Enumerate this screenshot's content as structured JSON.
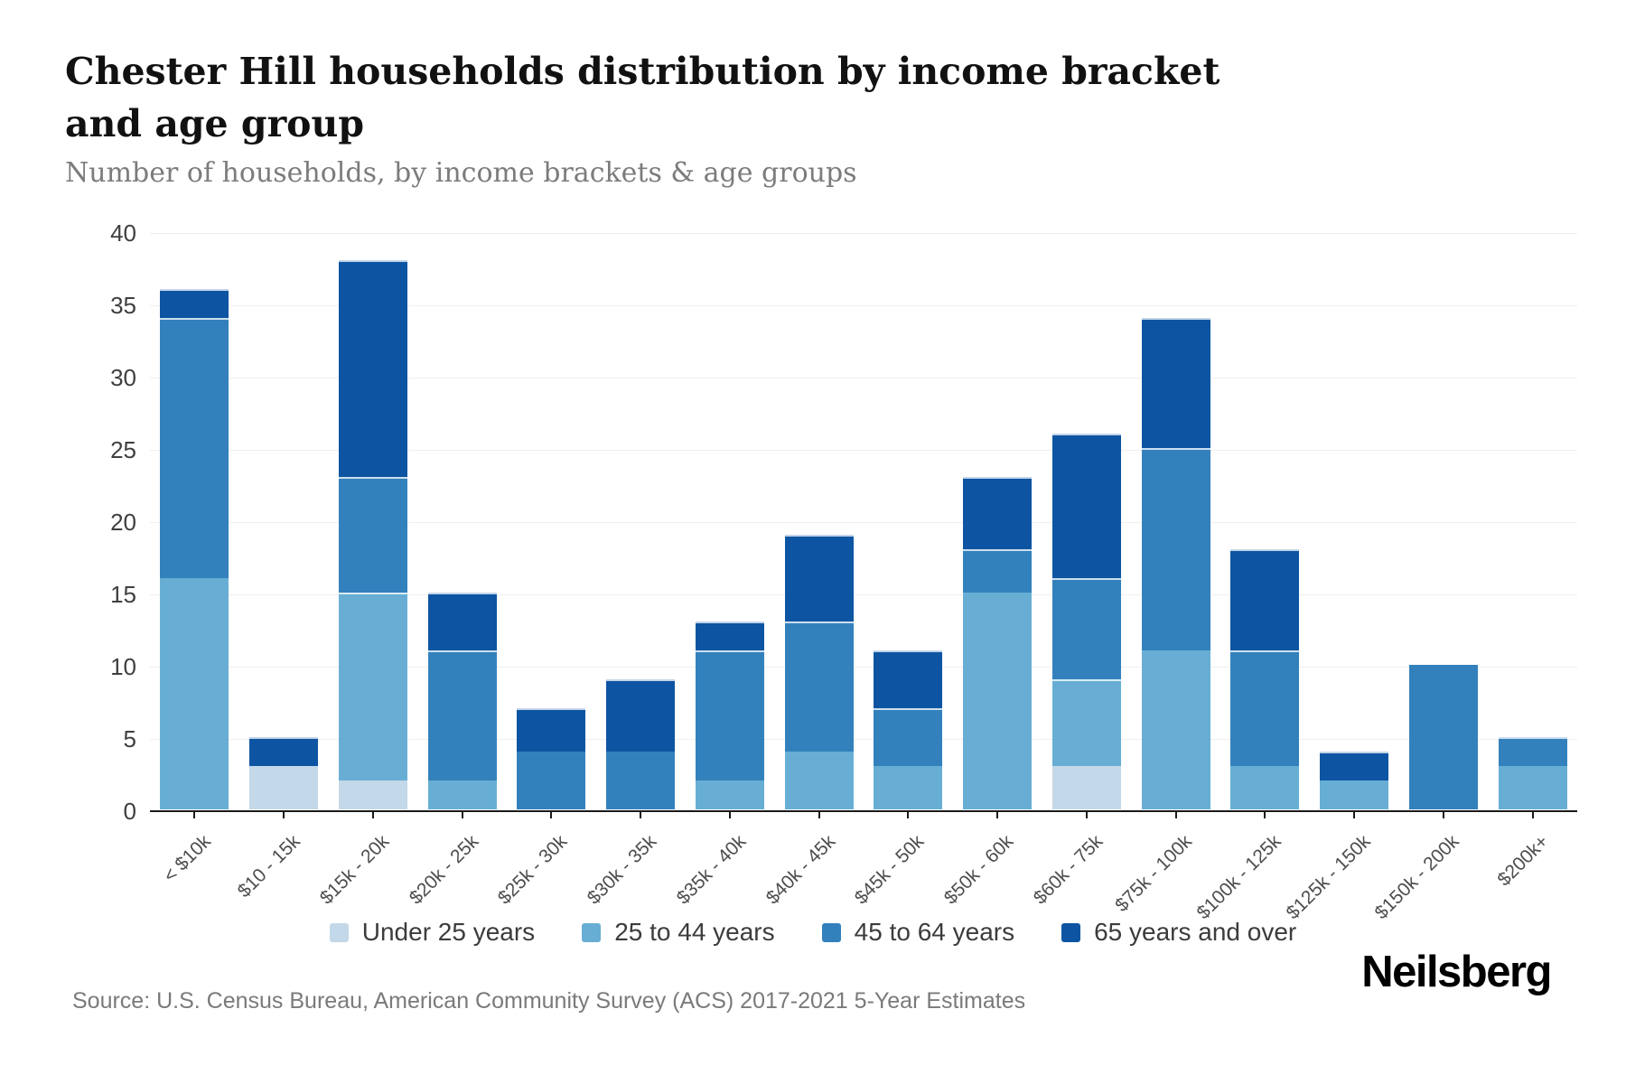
{
  "title": "Chester Hill households distribution by income bracket and age group",
  "subtitle": "Number of households, by income brackets & age groups",
  "source": "Source: U.S. Census Bureau, American Community Survey (ACS) 2017-2021 5-Year Estimates",
  "brand": "Neilsberg",
  "colors": {
    "under_25": "#c3d8e8",
    "age_25_44": "#68aed4",
    "age_45_64": "#3381bc",
    "age_65_over": "#0d55a2",
    "axis": "#1a1a1a",
    "grid": "#efefef",
    "title_text": "#111111",
    "subtitle_text": "#7c7c7c",
    "tick_text": "#3f3f3f",
    "xlabel_text": "#4d4d4d",
    "legend_text": "#3c3c3c",
    "source_text": "#7a7a7a"
  },
  "chart_data": {
    "type": "bar",
    "stacked": true,
    "title": "Chester Hill households distribution by income bracket and age group",
    "subtitle": "Number of households, by income brackets & age groups",
    "xlabel": "",
    "ylabel": "Number of households",
    "ylim": [
      0,
      40
    ],
    "yticks": [
      0,
      5,
      10,
      15,
      20,
      25,
      30,
      35,
      40
    ],
    "grid": true,
    "legend_position": "bottom",
    "categories": [
      "< $10k",
      "$10 - 15k",
      "$15k - 20k",
      "$20k - 25k",
      "$25k - 30k",
      "$30k - 35k",
      "$35k - 40k",
      "$40k - 45k",
      "$45k - 50k",
      "$50k - 60k",
      "$60k - 75k",
      "$75k - 100k",
      "$100k - 125k",
      "$125k - 150k",
      "$150k - 200k",
      "$200k+"
    ],
    "series": [
      {
        "name": "Under 25 years",
        "color": "#c3d8e8",
        "values": [
          0,
          3,
          2,
          0,
          0,
          0,
          0,
          0,
          0,
          0,
          3,
          0,
          0,
          0,
          0,
          0
        ]
      },
      {
        "name": "25 to 44 years",
        "color": "#68aed4",
        "values": [
          16,
          0,
          13,
          2,
          0,
          0,
          2,
          4,
          3,
          15,
          6,
          11,
          3,
          2,
          0,
          3
        ]
      },
      {
        "name": "45 to 64 years",
        "color": "#3381bc",
        "values": [
          18,
          0,
          8,
          9,
          4,
          4,
          9,
          9,
          4,
          3,
          7,
          14,
          8,
          0,
          10,
          2
        ]
      },
      {
        "name": "65 years and over",
        "color": "#0d55a2",
        "values": [
          2,
          2,
          15,
          4,
          3,
          5,
          2,
          6,
          4,
          5,
          10,
          9,
          7,
          2,
          0,
          0
        ]
      }
    ],
    "totals": [
      36,
      5,
      38,
      15,
      7,
      9,
      13,
      19,
      11,
      23,
      26,
      34,
      18,
      4,
      10,
      5
    ]
  }
}
